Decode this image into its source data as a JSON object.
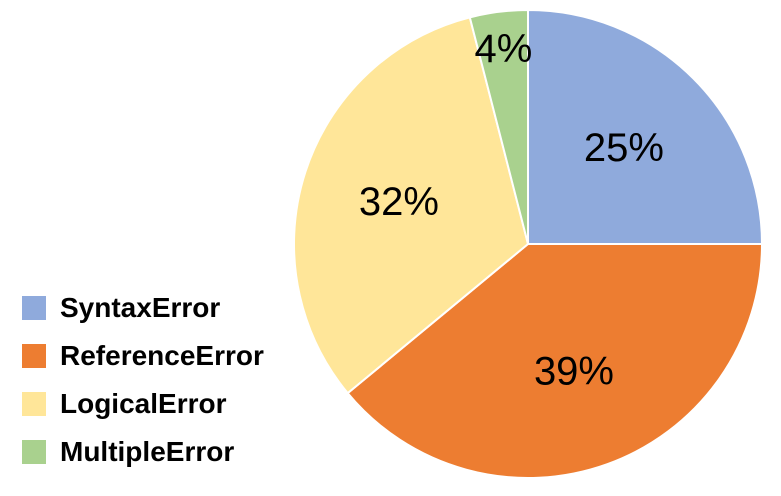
{
  "chart_data": {
    "type": "pie",
    "title": "",
    "slices": [
      {
        "name": "SyntaxError",
        "value": 25,
        "label": "25%",
        "color": "#8FAADC"
      },
      {
        "name": "ReferenceError",
        "value": 39,
        "label": "39%",
        "color": "#ED7D31"
      },
      {
        "name": "LogicalError",
        "value": 32,
        "label": "32%",
        "color": "#FFE699"
      },
      {
        "name": "MultipleError",
        "value": 4,
        "label": "4%",
        "color": "#A9D18E"
      }
    ],
    "start_angle": "12 o'clock",
    "direction": "clockwise",
    "legend_placement": "left"
  }
}
